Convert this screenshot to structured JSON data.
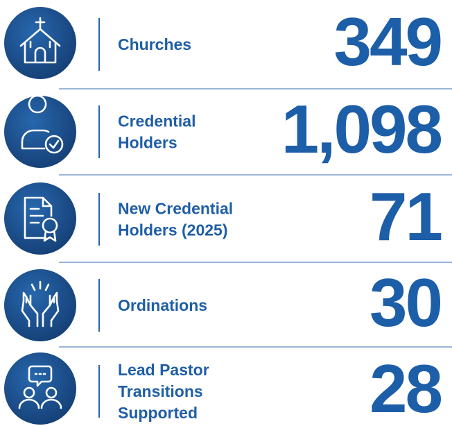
{
  "stats": [
    {
      "label_lines": [
        "Churches"
      ],
      "value": "349"
    },
    {
      "label_lines": [
        "Credential",
        "Holders"
      ],
      "value": "1,098"
    },
    {
      "label_lines": [
        "New Credential",
        "Holders (2025)"
      ],
      "value": "71"
    },
    {
      "label_lines": [
        "Ordinations"
      ],
      "value": "30"
    },
    {
      "label_lines": [
        "Lead Pastor",
        "Transitions",
        "Supported"
      ],
      "value": "28"
    }
  ]
}
